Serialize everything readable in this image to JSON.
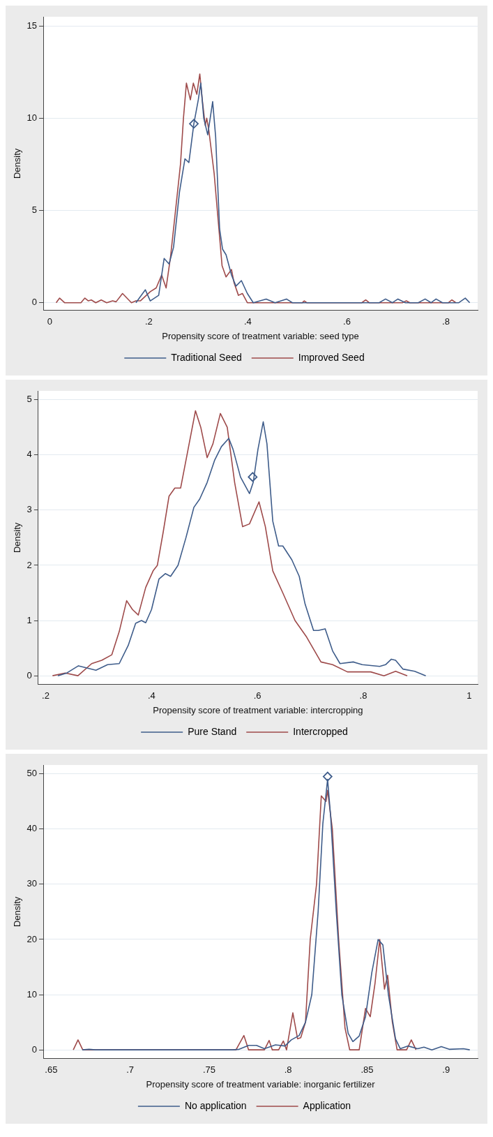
{
  "chart_data": [
    {
      "type": "line",
      "xlabel": "Propensity score of treatment variable: seed type",
      "ylabel": "Density",
      "xlim": [
        -0.013,
        0.864
      ],
      "xticks": [
        0,
        {
          "value": 0.2,
          "label": ".2"
        },
        {
          "value": 0.4,
          "label": ".4"
        },
        {
          "value": 0.6,
          "label": ".6"
        },
        {
          "value": 0.8,
          "label": ".8"
        }
      ],
      "ylim": [
        -0.42,
        15.5
      ],
      "yticks": [
        0,
        5,
        10,
        15
      ],
      "grid": "y",
      "legend": "bottom",
      "series": [
        {
          "name": "Traditional Seed",
          "color": "#3e5c8a",
          "x": [
            0.174,
            0.193,
            0.203,
            0.22,
            0.231,
            0.241,
            0.25,
            0.262,
            0.273,
            0.281,
            0.291,
            0.3,
            0.305,
            0.311,
            0.319,
            0.329,
            0.335,
            0.343,
            0.349,
            0.356,
            0.367,
            0.376,
            0.387,
            0.399,
            0.411,
            0.437,
            0.455,
            0.478,
            0.49,
            0.665,
            0.678,
            0.692,
            0.703,
            0.718,
            0.744,
            0.758,
            0.77,
            0.78,
            0.793,
            0.826,
            0.839,
            0.848
          ],
          "values": [
            0,
            0.7,
            0.1,
            0.4,
            2.4,
            2.1,
            3,
            6,
            7.8,
            7.6,
            9.7,
            11,
            11.9,
            10,
            9.1,
            10.9,
            9,
            4,
            2.9,
            2.6,
            1.5,
            0.9,
            1.2,
            0.5,
            0,
            0.2,
            0,
            0.2,
            0,
            0,
            0.2,
            0,
            0.2,
            0,
            0,
            0.2,
            0,
            0.2,
            0,
            0,
            0.25,
            0
          ]
        },
        {
          "name": "Improved Seed",
          "color": "#9e4a4a",
          "x": [
            0.013,
            0.02,
            0.03,
            0.063,
            0.071,
            0.078,
            0.084,
            0.093,
            0.104,
            0.115,
            0.127,
            0.134,
            0.147,
            0.165,
            0.174,
            0.183,
            0.203,
            0.215,
            0.226,
            0.235,
            0.244,
            0.256,
            0.264,
            0.27,
            0.276,
            0.284,
            0.29,
            0.297,
            0.303,
            0.308,
            0.314,
            0.317,
            0.321,
            0.332,
            0.34,
            0.348,
            0.356,
            0.367,
            0.372,
            0.381,
            0.389,
            0.399,
            0.51,
            0.514,
            0.519,
            0.63,
            0.638,
            0.645,
            0.712,
            0.72,
            0.727,
            0.805,
            0.812,
            0.82
          ],
          "values": [
            0,
            0.25,
            0,
            0,
            0.25,
            0.1,
            0.15,
            0,
            0.15,
            0,
            0.1,
            0.05,
            0.5,
            0,
            0.1,
            0.1,
            0.6,
            0.8,
            1.5,
            0.8,
            2.5,
            5.5,
            7.5,
            10,
            11.9,
            11,
            11.9,
            11.3,
            12.4,
            11,
            9.6,
            10,
            9.4,
            7,
            4.5,
            2,
            1.4,
            1.8,
            1.1,
            0.4,
            0.5,
            0,
            0,
            0.1,
            0,
            0,
            0.15,
            0,
            0,
            0.1,
            0,
            0,
            0.15,
            0
          ]
        },
        {
          "type": "scatter",
          "color": "#3e5c8a",
          "marker": "diamond",
          "x": [
            0.291
          ],
          "values": [
            9.7
          ]
        }
      ]
    },
    {
      "type": "line",
      "xlabel": "Propensity score of treatment variable: intercropping",
      "ylabel": "Density",
      "xlim": [
        0.186,
        1.016
      ],
      "xticks": [
        {
          "value": 0.2,
          "label": ".2"
        },
        {
          "value": 0.4,
          "label": ".4"
        },
        {
          "value": 0.6,
          "label": ".6"
        },
        {
          "value": 0.8,
          "label": ".8"
        },
        1
      ],
      "ylim": [
        -0.16,
        5.16
      ],
      "yticks": [
        0,
        1,
        2,
        3,
        4,
        5
      ],
      "grid": "y",
      "legend": "bottom",
      "series": [
        {
          "name": "Pure Stand",
          "color": "#3e5c8a",
          "x": [
            0.223,
            0.24,
            0.262,
            0.295,
            0.317,
            0.339,
            0.356,
            0.37,
            0.381,
            0.389,
            0.4,
            0.414,
            0.426,
            0.436,
            0.45,
            0.465,
            0.48,
            0.491,
            0.505,
            0.519,
            0.532,
            0.546,
            0.554,
            0.568,
            0.585,
            0.592,
            0.601,
            0.611,
            0.618,
            0.629,
            0.64,
            0.648,
            0.665,
            0.679,
            0.69,
            0.706,
            0.715,
            0.728,
            0.742,
            0.756,
            0.781,
            0.798,
            0.831,
            0.842,
            0.853,
            0.861,
            0.875,
            0.897,
            0.918
          ],
          "values": [
            0,
            0.05,
            0.18,
            0.1,
            0.2,
            0.22,
            0.55,
            0.95,
            1.0,
            0.96,
            1.2,
            1.75,
            1.85,
            1.8,
            2.0,
            2.5,
            3.05,
            3.2,
            3.5,
            3.9,
            4.15,
            4.3,
            4.1,
            3.6,
            3.3,
            3.5,
            4.1,
            4.6,
            4.2,
            2.8,
            2.35,
            2.35,
            2.1,
            1.8,
            1.3,
            0.82,
            0.82,
            0.85,
            0.45,
            0.22,
            0.25,
            0.2,
            0.17,
            0.2,
            0.3,
            0.28,
            0.12,
            0.08,
            0
          ]
        },
        {
          "name": "Intercropped",
          "color": "#9e4a4a",
          "x": [
            0.213,
            0.237,
            0.261,
            0.287,
            0.306,
            0.325,
            0.339,
            0.353,
            0.364,
            0.375,
            0.389,
            0.403,
            0.411,
            0.422,
            0.433,
            0.444,
            0.455,
            0.469,
            0.483,
            0.493,
            0.505,
            0.516,
            0.53,
            0.543,
            0.557,
            0.572,
            0.585,
            0.603,
            0.615,
            0.629,
            0.648,
            0.671,
            0.693,
            0.72,
            0.742,
            0.77,
            0.814,
            0.839,
            0.861,
            0.883
          ],
          "values": [
            0,
            0.05,
            0,
            0.22,
            0.28,
            0.38,
            0.8,
            1.36,
            1.2,
            1.1,
            1.6,
            1.9,
            2.0,
            2.6,
            3.25,
            3.4,
            3.4,
            4.1,
            4.8,
            4.5,
            3.95,
            4.2,
            4.75,
            4.5,
            3.5,
            2.7,
            2.75,
            3.15,
            2.7,
            1.9,
            1.5,
            1.0,
            0.7,
            0.25,
            0.2,
            0.07,
            0.07,
            0,
            0.08,
            0
          ]
        },
        {
          "type": "scatter",
          "color": "#3e5c8a",
          "marker": "diamond",
          "x": [
            0.591
          ],
          "values": [
            3.6
          ]
        }
      ]
    },
    {
      "type": "line",
      "xlabel": "Propensity score of treatment variable: inorganic fertilizer",
      "ylabel": "Density",
      "xlim": [
        0.645,
        0.92
      ],
      "xticks": [
        {
          "value": 0.65,
          "label": ".65"
        },
        {
          "value": 0.7,
          "label": ".7"
        },
        {
          "value": 0.75,
          "label": ".75"
        },
        {
          "value": 0.8,
          "label": ".8"
        },
        {
          "value": 0.85,
          "label": ".85"
        },
        {
          "value": 0.9,
          "label": ".9"
        }
      ],
      "ylim": [
        -1.6,
        51.6
      ],
      "yticks": [
        0,
        10,
        20,
        30,
        40,
        50
      ],
      "grid": "y",
      "legend": "bottom",
      "series": [
        {
          "name": "No application",
          "color": "#3e5c8a",
          "x": [
            0.6697,
            0.674,
            0.678,
            0.765,
            0.769,
            0.775,
            0.78,
            0.785,
            0.792,
            0.798,
            0.802,
            0.807,
            0.811,
            0.815,
            0.819,
            0.822,
            0.825,
            0.827,
            0.8305,
            0.834,
            0.838,
            0.841,
            0.845,
            0.849,
            0.853,
            0.857,
            0.86,
            0.8635,
            0.868,
            0.871,
            0.876,
            0.882,
            0.886,
            0.891,
            0.897,
            0.902,
            0.911,
            0.915
          ],
          "values": [
            0,
            0.1,
            0,
            0,
            0.1,
            0.8,
            0.8,
            0.2,
            0.9,
            0.7,
            1.8,
            2.6,
            5,
            10,
            25,
            41,
            49,
            42,
            25,
            10,
            3,
            1.5,
            2.5,
            6,
            14,
            20,
            19,
            10,
            2,
            0.2,
            0.7,
            0.2,
            0.5,
            0,
            0.6,
            0.1,
            0.2,
            0
          ]
        },
        {
          "name": "Application",
          "color": "#9e4a4a",
          "x": [
            0.664,
            0.667,
            0.67,
            0.767,
            0.772,
            0.775,
            0.785,
            0.788,
            0.79,
            0.794,
            0.797,
            0.799,
            0.803,
            0.806,
            0.808,
            0.811,
            0.814,
            0.818,
            0.821,
            0.824,
            0.825,
            0.828,
            0.832,
            0.836,
            0.839,
            0.845,
            0.849,
            0.852,
            0.855,
            0.858,
            0.861,
            0.863,
            0.866,
            0.869,
            0.875,
            0.878,
            0.881
          ],
          "values": [
            0,
            1.8,
            0,
            0,
            2.6,
            0,
            0,
            1.7,
            0,
            0,
            1.6,
            0,
            6.7,
            2,
            2.2,
            5,
            20,
            30,
            46,
            45,
            47,
            40,
            20,
            4,
            0,
            0,
            7.5,
            6,
            12,
            20,
            11,
            13.5,
            5,
            0,
            0,
            1.8,
            0
          ]
        },
        {
          "type": "scatter",
          "color": "#3e5c8a",
          "marker": "diamond",
          "x": [
            0.825
          ],
          "values": [
            49.5
          ]
        }
      ]
    }
  ]
}
